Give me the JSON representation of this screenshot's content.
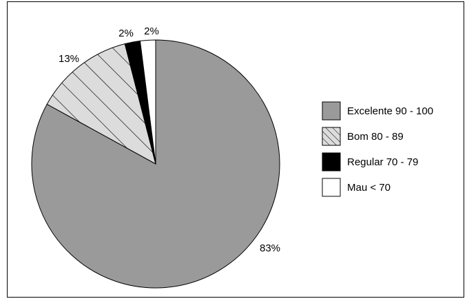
{
  "chart_data": {
    "type": "pie",
    "title": "",
    "slices": [
      {
        "label": "Excelente 90 - 100",
        "value": 83,
        "display": "83%",
        "fill": "#9a9a9a",
        "pattern": "solid"
      },
      {
        "label": "Bom 80 - 89",
        "value": 13,
        "display": "13%",
        "fill": "#dcdcdc",
        "pattern": "diagonal-hatch"
      },
      {
        "label": "Regular 70 - 79",
        "value": 2,
        "display": "2%",
        "fill": "#000000",
        "pattern": "solid"
      },
      {
        "label": "Mau < 70",
        "value": 2,
        "display": "2%",
        "fill": "#ffffff",
        "pattern": "solid"
      }
    ],
    "legend_position": "right",
    "start": "top",
    "direction": "clockwise"
  }
}
